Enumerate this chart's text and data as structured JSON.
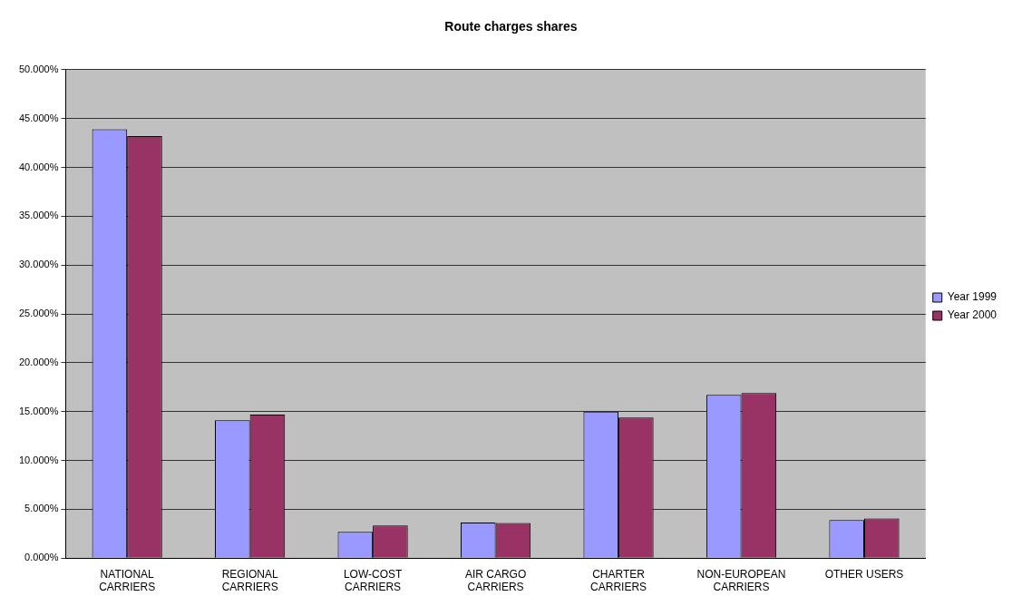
{
  "chart_data": {
    "type": "bar",
    "title": "Route charges shares",
    "categories": [
      "NATIONAL CARRIERS",
      "REGIONAL CARRIERS",
      "LOW-COST CARRIERS",
      "AIR CARGO CARRIERS",
      "CHARTER CARRIERS",
      "NON-EUROPEAN CARRIERS",
      "OTHER USERS"
    ],
    "series": [
      {
        "name": "Year 1999",
        "color": "#9999ff",
        "values": [
          43.9,
          14.1,
          2.7,
          3.65,
          15.0,
          16.7,
          3.9
        ]
      },
      {
        "name": "Year 2000",
        "color": "#993366",
        "values": [
          43.2,
          14.7,
          3.35,
          3.6,
          14.4,
          16.9,
          4.05
        ]
      }
    ],
    "ylim": [
      0,
      50
    ],
    "yticks": [
      {
        "value": 0,
        "label": "0.000%"
      },
      {
        "value": 5,
        "label": "5.000%"
      },
      {
        "value": 10,
        "label": "10.000%"
      },
      {
        "value": 15,
        "label": "15.000%"
      },
      {
        "value": 20,
        "label": "20.000%"
      },
      {
        "value": 25,
        "label": "25.000%"
      },
      {
        "value": 30,
        "label": "30.000%"
      },
      {
        "value": 35,
        "label": "35.000%"
      },
      {
        "value": 40,
        "label": "40.000%"
      },
      {
        "value": 45,
        "label": "45.000%"
      },
      {
        "value": 50,
        "label": "50.000%"
      }
    ],
    "grid": "y",
    "legend": "right"
  }
}
